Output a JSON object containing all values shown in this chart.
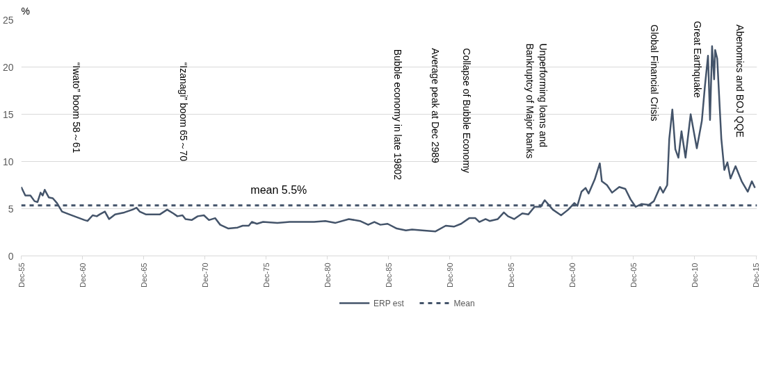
{
  "chart_data": {
    "type": "line",
    "ylabel": "%",
    "x": [
      "1955-12",
      "1956-04",
      "1956-09",
      "1957-01",
      "1957-04",
      "1957-07",
      "1957-09",
      "1957-11",
      "1958-03",
      "1958-07",
      "1958-11",
      "1959-04",
      "1959-11",
      "1960-04",
      "1961-02",
      "1961-05",
      "1961-10",
      "1962-02",
      "1962-05",
      "1962-10",
      "1963-02",
      "1963-08",
      "1964-05",
      "1965-01",
      "1965-05",
      "1965-08",
      "1966-02",
      "1966-08",
      "1967-04",
      "1967-11",
      "1968-05",
      "1968-09",
      "1969-02",
      "1969-05",
      "1969-11",
      "1970-05",
      "1970-11",
      "1971-04",
      "1971-10",
      "1972-03",
      "1972-11",
      "1973-08",
      "1974-01",
      "1974-07",
      "1974-10",
      "1975-03",
      "1975-09",
      "1976-11",
      "1977-11",
      "1978-11",
      "1979-11",
      "1980-10",
      "1981-08",
      "1982-09",
      "1983-08",
      "1984-04",
      "1984-10",
      "1985-04",
      "1985-11",
      "1986-08",
      "1987-05",
      "1987-11",
      "1988-09",
      "1989-10",
      "1990-08",
      "1991-04",
      "1991-11",
      "1992-07",
      "1993-01",
      "1993-05",
      "1993-11",
      "1994-03",
      "1994-11",
      "1995-05",
      "1995-09",
      "1996-03",
      "1996-11",
      "1997-05",
      "1997-11",
      "1998-05",
      "1998-09",
      "1999-01",
      "1999-05",
      "2000-01",
      "2000-08",
      "2001-02",
      "2001-05",
      "2001-09",
      "2002-01",
      "2002-04",
      "2002-10",
      "2003-03",
      "2003-05",
      "2003-10",
      "2004-03",
      "2004-10",
      "2005-04",
      "2005-09",
      "2006-02",
      "2006-08",
      "2007-03",
      "2007-08",
      "2008-02",
      "2008-05",
      "2008-09",
      "2008-11",
      "2009-02",
      "2009-05",
      "2009-08",
      "2009-11",
      "2010-03",
      "2010-08",
      "2011-02",
      "2011-07",
      "2011-10",
      "2012-01",
      "2012-03",
      "2012-05",
      "2012-07",
      "2012-08",
      "2012-10",
      "2013-02",
      "2013-05",
      "2013-08",
      "2013-11",
      "2014-04",
      "2014-10",
      "2015-04",
      "2015-08",
      "2015-11"
    ],
    "series": [
      {
        "name": "ERP est",
        "color": "#44546a",
        "line_style": "solid",
        "values": [
          7.3,
          6.4,
          6.4,
          5.8,
          5.7,
          6.7,
          6.4,
          7.0,
          6.2,
          6.1,
          5.6,
          4.7,
          4.4,
          4.2,
          3.8,
          3.7,
          4.3,
          4.2,
          4.4,
          4.7,
          3.9,
          4.4,
          4.6,
          4.9,
          5.1,
          4.7,
          4.4,
          4.4,
          4.4,
          4.9,
          4.5,
          4.2,
          4.3,
          3.9,
          3.8,
          4.2,
          4.3,
          3.8,
          4.0,
          3.3,
          2.9,
          3.0,
          3.2,
          3.2,
          3.6,
          3.4,
          3.6,
          3.5,
          3.6,
          3.6,
          3.6,
          3.7,
          3.5,
          3.9,
          3.7,
          3.3,
          3.6,
          3.3,
          3.4,
          2.9,
          2.7,
          2.8,
          2.7,
          2.6,
          3.2,
          3.1,
          3.4,
          4.0,
          4.0,
          3.6,
          3.9,
          3.7,
          3.9,
          4.6,
          4.2,
          3.9,
          4.5,
          4.4,
          5.2,
          5.2,
          5.9,
          5.4,
          4.9,
          4.3,
          4.9,
          5.6,
          5.3,
          6.8,
          7.2,
          6.6,
          8.1,
          9.8,
          7.9,
          7.5,
          6.7,
          7.3,
          7.1,
          6.0,
          5.2,
          5.5,
          5.4,
          5.8,
          7.3,
          6.7,
          7.5,
          12.4,
          15.5,
          11.3,
          10.4,
          13.2,
          10.4,
          15.0,
          11.4,
          14.3,
          18.0,
          21.2,
          14.4,
          22.2,
          18.7,
          21.8,
          20.9,
          12.4,
          9.1,
          9.9,
          8.2,
          9.5,
          7.9,
          6.8,
          7.9,
          7.2
        ]
      }
    ],
    "ref_lines": [
      {
        "axis": "y",
        "value": 5.35,
        "label": "Mean",
        "color": "#44546a",
        "line_style": "dashed"
      }
    ],
    "annotations": [
      "mean 5.5%",
      "“Iwato” boom  58～61",
      "“Izanagi” boom  65～70",
      "Bubble economy in late 19802",
      "Average peak at Dec 2989",
      "Collapse of Bubble Economy",
      "Unperforming loans and\nBankruptcy of Major banks",
      "Global Financial Crisis",
      "Great Earthquake",
      "Abenomics and BOJ QQE"
    ],
    "xlim": [
      "1955-12",
      "2016-01"
    ],
    "xticks": [
      {
        "value": "1955-12",
        "label": "Dec-55"
      },
      {
        "value": "1960-12",
        "label": "Dec-60"
      },
      {
        "value": "1965-12",
        "label": "Dec-65"
      },
      {
        "value": "1970-12",
        "label": "Dec-70"
      },
      {
        "value": "1975-12",
        "label": "Dec-75"
      },
      {
        "value": "1980-12",
        "label": "Dec-80"
      },
      {
        "value": "1985-12",
        "label": "Dec-85"
      },
      {
        "value": "1990-12",
        "label": "Dec-90"
      },
      {
        "value": "1995-12",
        "label": "Dec-95"
      },
      {
        "value": "2000-12",
        "label": "Dec-00"
      },
      {
        "value": "2005-12",
        "label": "Dec-05"
      },
      {
        "value": "2010-12",
        "label": "Dec-10"
      },
      {
        "value": "2015-12",
        "label": "Dec-15"
      }
    ],
    "ylim": [
      0,
      25
    ],
    "yticks": [
      0,
      5,
      10,
      15,
      20,
      25
    ],
    "grid": "y",
    "legend": "bottom"
  }
}
